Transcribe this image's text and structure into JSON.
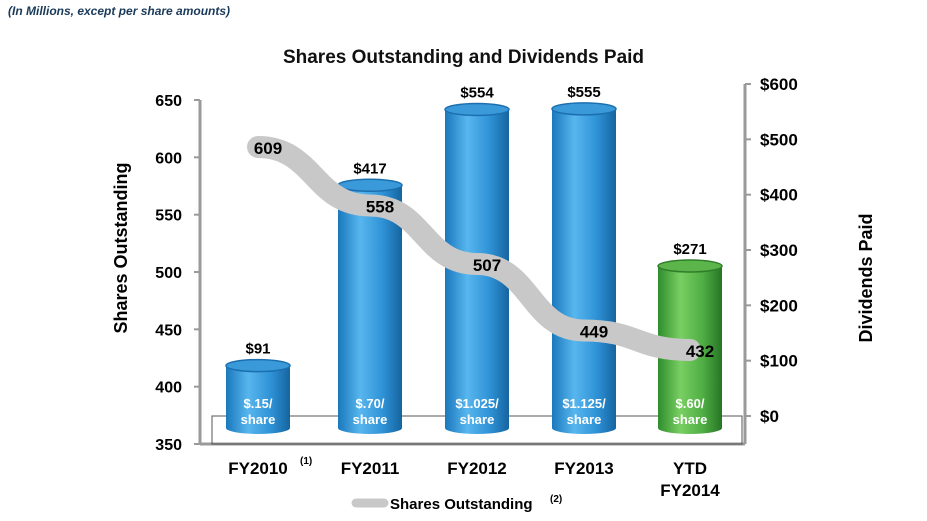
{
  "header_note": "(In Millions, except per share amounts)",
  "colors": {
    "bar_blue": "#3a9ad9",
    "bar_blue_dark": "#1c6fae",
    "bar_green": "#5cb54a",
    "bar_green_dark": "#2f7d2a",
    "line_gray": "#c8c8c8"
  },
  "chart_data": {
    "type": "bar",
    "title": "Shares Outstanding and Dividends Paid",
    "categories": [
      "FY2010",
      "FY2011",
      "FY2012",
      "FY2013",
      "YTD FY2014"
    ],
    "category_lines": [
      [
        "FY2010"
      ],
      [
        "FY2011"
      ],
      [
        "FY2012"
      ],
      [
        "FY2013"
      ],
      [
        "YTD",
        "FY2014"
      ]
    ],
    "category_superscripts": [
      "(1)",
      "",
      "",
      "",
      ""
    ],
    "left_axis": {
      "label": "Shares Outstanding",
      "ylim": [
        350,
        650
      ],
      "ticks": [
        350,
        400,
        450,
        500,
        550,
        600,
        650
      ],
      "tick_labels": [
        "350",
        "400",
        "450",
        "500",
        "550",
        "600",
        "650"
      ]
    },
    "right_axis": {
      "label": "Dividends Paid",
      "ylim": [
        0,
        600
      ],
      "ticks": [
        0,
        100,
        200,
        300,
        400,
        500,
        600
      ],
      "tick_labels": [
        "$0",
        "$100",
        "$200",
        "$300",
        "$400",
        "$500",
        "$600"
      ]
    },
    "series": [
      {
        "name": "Dividends Paid",
        "kind": "bar",
        "axis": "right",
        "values": [
          91,
          417,
          554,
          555,
          271
        ],
        "value_labels": [
          "$91",
          "$417",
          "$554",
          "$555",
          "$271"
        ],
        "per_share_labels": [
          [
            "$.15/",
            "share"
          ],
          [
            "$.70/",
            "share"
          ],
          [
            "$1.025/",
            "share"
          ],
          [
            "$1.125/",
            "share"
          ],
          [
            "$.60/",
            "share"
          ]
        ],
        "bar_colors": [
          "blue",
          "blue",
          "blue",
          "blue",
          "green"
        ]
      },
      {
        "name": "Shares Outstanding",
        "kind": "line",
        "axis": "left",
        "values": [
          609,
          558,
          507,
          449,
          432
        ],
        "value_labels": [
          "609",
          "558",
          "507",
          "449",
          "432"
        ]
      }
    ],
    "legend": {
      "position": "bottom",
      "entries": [
        {
          "label": "Shares Outstanding",
          "superscript": "(2)"
        }
      ]
    },
    "grid": false
  }
}
